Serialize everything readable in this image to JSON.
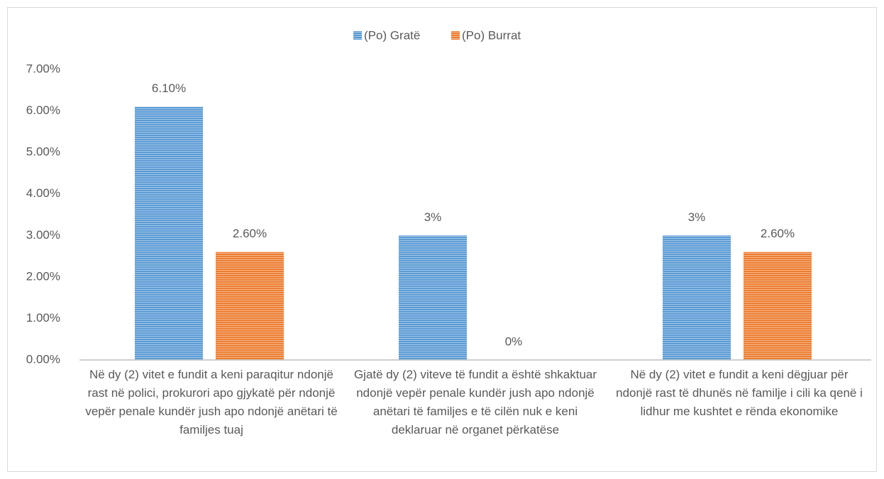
{
  "chart_data": {
    "type": "bar",
    "categories": [
      "Në dy (2) vitet e fundit a keni paraqitur ndonjë rast në polici, prokurori apo gjykatë për ndonjë vepër penale kundër jush apo ndonjë anëtari të familjes tuaj",
      "Gjatë dy (2) viteve të fundit a është shkaktuar ndonjë vepër penale kundër jush apo ndonjë anëtari të familjes e të cilën nuk e keni deklaruar në organet përkatëse",
      "Në dy (2) vitet e fundit a keni dëgjuar për ndonjë rast të dhunës në familje i cili ka qenë i lidhur me kushtet e rënda ekonomike"
    ],
    "series": [
      {
        "name": "(Po) Gratë",
        "color": "#5b9bd5",
        "values": [
          6.1,
          3,
          3
        ],
        "value_labels": [
          "6.10%",
          "3%",
          "3%"
        ]
      },
      {
        "name": "(Po) Burrat",
        "color": "#ed7d31",
        "values": [
          2.6,
          0,
          2.6
        ],
        "value_labels": [
          "2.60%",
          "0%",
          "2.60%"
        ]
      }
    ],
    "ylim": [
      0,
      7
    ],
    "yticks": [
      {
        "value": 0,
        "label": "0.00%"
      },
      {
        "value": 1,
        "label": "1.00%"
      },
      {
        "value": 2,
        "label": "2.00%"
      },
      {
        "value": 3,
        "label": "3.00%"
      },
      {
        "value": 4,
        "label": "4.00%"
      },
      {
        "value": 5,
        "label": "5.00%"
      },
      {
        "value": 6,
        "label": "6.00%"
      },
      {
        "value": 7,
        "label": "7.00%"
      }
    ],
    "grid": false,
    "legend": "top"
  }
}
